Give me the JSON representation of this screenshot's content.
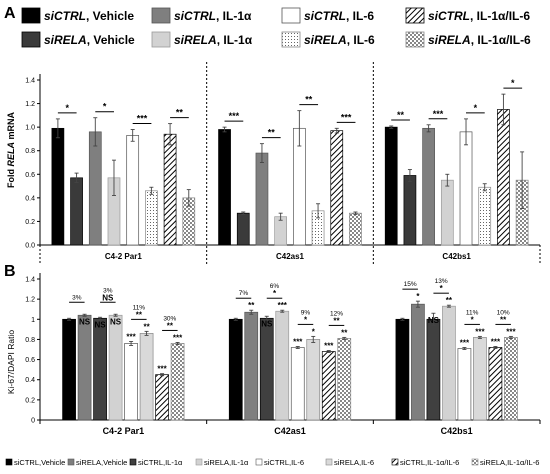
{
  "chart_data": [
    {
      "type": "bar",
      "panel_label": "A",
      "ylabel_pre": "Fold ",
      "ylabel_italic": "RELA",
      "ylabel_post": " mRNA",
      "ylim": [
        0,
        1.4
      ],
      "yticks": [
        "0.0",
        "0.2",
        "0.4",
        "0.6",
        "0.8",
        "1.0",
        "1.2",
        "1.4"
      ],
      "grid": false,
      "legend_position": "top",
      "legend": [
        {
          "italic": "siCTRL",
          "rest": ", Vehicle"
        },
        {
          "italic": "siCTRL",
          "rest": ", IL-1α"
        },
        {
          "italic": "siCTRL",
          "rest": ", IL-6"
        },
        {
          "italic": "siCTRL",
          "rest": ", IL-1α/IL-6"
        },
        {
          "italic": "siRELA",
          "rest": ", Vehicle"
        },
        {
          "italic": "siRELA",
          "rest": ", IL-1α"
        },
        {
          "italic": "siRELA",
          "rest": ", IL-6"
        },
        {
          "italic": "siRELA",
          "rest": ", IL-1α/IL-6"
        }
      ],
      "categories": [
        "C4-2 Par1",
        "C42as1",
        "C42bs1"
      ],
      "series": [
        {
          "name": "siCTRL, Vehicle",
          "values": [
            0.99,
            0.98,
            1.0
          ],
          "errors": [
            0.08,
            0.02,
            0.01
          ]
        },
        {
          "name": "siRELA, Vehicle",
          "values": [
            0.57,
            0.27,
            0.59
          ],
          "errors": [
            0.04,
            0.01,
            0.05
          ]
        },
        {
          "name": "siCTRL, IL-1α",
          "values": [
            0.96,
            0.78,
            0.99
          ],
          "errors": [
            0.12,
            0.08,
            0.03
          ]
        },
        {
          "name": "siRELA, IL-1α",
          "values": [
            0.57,
            0.24,
            0.55
          ],
          "errors": [
            0.15,
            0.03,
            0.05
          ]
        },
        {
          "name": "siCTRL, IL-6",
          "values": [
            0.93,
            0.99,
            0.96
          ],
          "errors": [
            0.05,
            0.15,
            0.11
          ]
        },
        {
          "name": "siRELA, IL-6",
          "values": [
            0.46,
            0.29,
            0.49
          ],
          "errors": [
            0.03,
            0.06,
            0.03
          ]
        },
        {
          "name": "siCTRL, IL-1α/IL-6",
          "values": [
            0.94,
            0.97,
            1.15
          ],
          "errors": [
            0.09,
            0.02,
            0.13
          ]
        },
        {
          "name": "siRELA, IL-1α/IL-6",
          "values": [
            0.4,
            0.27,
            0.55
          ],
          "errors": [
            0.07,
            0.01,
            0.24
          ]
        }
      ],
      "significance": [
        {
          "group": 0,
          "pair": [
            0,
            1
          ],
          "label": "*"
        },
        {
          "group": 0,
          "pair": [
            2,
            3
          ],
          "label": "*"
        },
        {
          "group": 0,
          "pair": [
            4,
            5
          ],
          "label": "***"
        },
        {
          "group": 0,
          "pair": [
            6,
            7
          ],
          "label": "**"
        },
        {
          "group": 1,
          "pair": [
            0,
            1
          ],
          "label": "***"
        },
        {
          "group": 1,
          "pair": [
            2,
            3
          ],
          "label": "**"
        },
        {
          "group": 1,
          "pair": [
            4,
            5
          ],
          "label": "**"
        },
        {
          "group": 1,
          "pair": [
            6,
            7
          ],
          "label": "***"
        },
        {
          "group": 2,
          "pair": [
            0,
            1
          ],
          "label": "**"
        },
        {
          "group": 2,
          "pair": [
            2,
            3
          ],
          "label": "***"
        },
        {
          "group": 2,
          "pair": [
            4,
            5
          ],
          "label": "*"
        },
        {
          "group": 2,
          "pair": [
            6,
            7
          ],
          "label": "*"
        }
      ]
    },
    {
      "type": "bar",
      "panel_label": "B",
      "ylabel": "Ki-67/DAPI Ratio",
      "ylim": [
        0,
        1.4
      ],
      "yticks": [
        "0",
        "0.2",
        "0.4",
        "0.6",
        "0.8",
        "1",
        "1.2",
        "1.4"
      ],
      "grid": false,
      "legend_position": "bottom",
      "legend": [
        "siCTRL,Vehicle",
        "siRELA,Vehicle",
        "siCTRL,IL-1α",
        "siRELA,IL-1α",
        "siCTRL,IL-6",
        "siRELA,IL-6",
        "siCTRL,IL-1α/IL-6",
        "siRELA,IL-1α/IL-6"
      ],
      "categories": [
        "C4-2 Par1",
        "C42as1",
        "C42bs1"
      ],
      "series": [
        {
          "name": "siCTRL,Vehicle",
          "values": [
            1.0,
            1.0,
            1.0
          ],
          "errors": [
            0.01,
            0.01,
            0.01
          ]
        },
        {
          "name": "siRELA,Vehicle",
          "values": [
            1.04,
            1.07,
            1.15
          ],
          "errors": [
            0.01,
            0.02,
            0.03
          ]
        },
        {
          "name": "siCTRL,IL-1α",
          "values": [
            1.01,
            1.01,
            1.0
          ],
          "errors": [
            0.01,
            0.02,
            0.06
          ]
        },
        {
          "name": "siRELA,IL-1α",
          "values": [
            1.04,
            1.08,
            1.13
          ],
          "errors": [
            0.01,
            0.01,
            0.01
          ]
        },
        {
          "name": "siCTRL,IL-6",
          "values": [
            0.76,
            0.72,
            0.71
          ],
          "errors": [
            0.02,
            0.01,
            0.01
          ]
        },
        {
          "name": "siRELA,IL-6",
          "values": [
            0.86,
            0.8,
            0.82
          ],
          "errors": [
            0.02,
            0.03,
            0.01
          ]
        },
        {
          "name": "siCTRL,IL-1α/IL-6",
          "values": [
            0.45,
            0.68,
            0.72
          ],
          "errors": [
            0.01,
            0.01,
            0.01
          ]
        },
        {
          "name": "siRELA,IL-1α/IL-6",
          "values": [
            0.76,
            0.81,
            0.82
          ],
          "errors": [
            0.01,
            0.01,
            0.01
          ]
        }
      ],
      "bar_labels": [
        [
          "",
          "",
          "",
          "",
          "***",
          "**",
          "***",
          "***"
        ],
        [
          "",
          "**",
          "",
          "***",
          "***",
          "*",
          "***",
          "**"
        ],
        [
          "",
          "*",
          "",
          "**",
          "***",
          "***",
          "***",
          "***"
        ]
      ],
      "ns_labels": [
        [
          "NS",
          "NS",
          "NS",
          "NS",
          "",
          "",
          "",
          ""
        ],
        [
          "NS",
          "",
          "NS",
          "",
          "",
          "",
          "",
          ""
        ],
        [
          "",
          "",
          "NS",
          "",
          "",
          "",
          "",
          ""
        ]
      ],
      "significance": [
        {
          "group": 0,
          "pair": [
            0,
            1
          ],
          "label": "",
          "pct": "3%"
        },
        {
          "group": 0,
          "pair": [
            2,
            3
          ],
          "label": "NS",
          "pct": "3%"
        },
        {
          "group": 0,
          "pair": [
            4,
            5
          ],
          "label": "**",
          "pct": "11%"
        },
        {
          "group": 0,
          "pair": [
            6,
            7
          ],
          "label": "**",
          "pct": "30%"
        },
        {
          "group": 1,
          "pair": [
            0,
            1
          ],
          "label": "",
          "pct": "7%"
        },
        {
          "group": 1,
          "pair": [
            2,
            3
          ],
          "label": "*",
          "pct": "6%"
        },
        {
          "group": 1,
          "pair": [
            4,
            5
          ],
          "label": "*",
          "pct": "9%"
        },
        {
          "group": 1,
          "pair": [
            6,
            7
          ],
          "label": "**",
          "pct": "12%"
        },
        {
          "group": 2,
          "pair": [
            0,
            1
          ],
          "label": "",
          "pct": "15%"
        },
        {
          "group": 2,
          "pair": [
            2,
            3
          ],
          "label": "*",
          "pct": "13%"
        },
        {
          "group": 2,
          "pair": [
            4,
            5
          ],
          "label": "*",
          "pct": "11%"
        },
        {
          "group": 2,
          "pair": [
            6,
            7
          ],
          "label": "**",
          "pct": "10%"
        }
      ]
    }
  ]
}
